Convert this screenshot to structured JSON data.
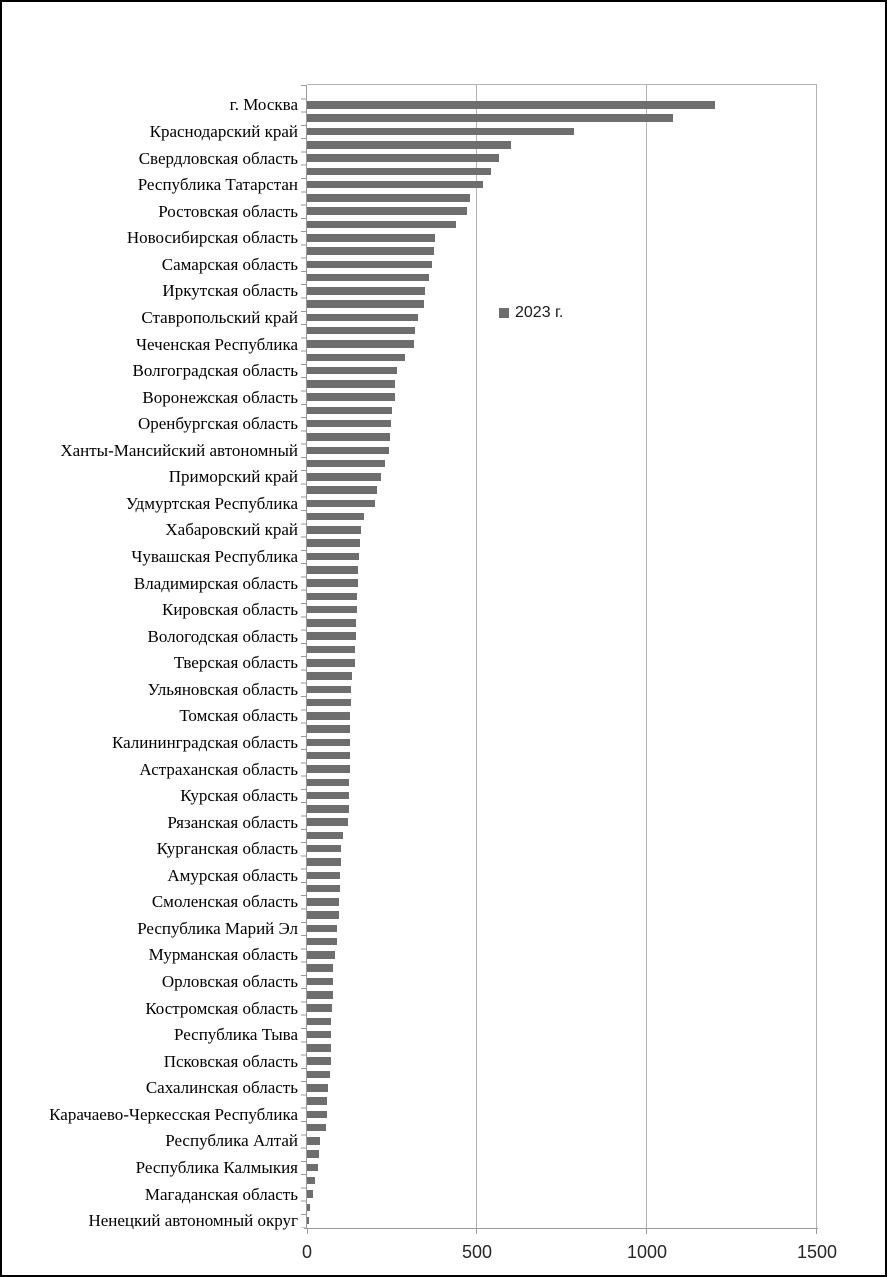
{
  "chart_data": {
    "type": "bar",
    "orientation": "horizontal",
    "legend": "2023 г.",
    "legend_position": "inside-plot",
    "grid": "vertical",
    "xlim": [
      0,
      1500
    ],
    "xticks": [
      0,
      500,
      1000,
      1500
    ],
    "xtick_labels": [
      "0",
      "500",
      "1000",
      "1500"
    ],
    "bar_color": "#6e6e6e",
    "note_unlabeled_rows": "",
    "rows": [
      {
        "label": "г. Москва",
        "value": 1200
      },
      {
        "label": "",
        "value": 1075
      },
      {
        "label": "Краснодарский край",
        "value": 785
      },
      {
        "label": "",
        "value": 600
      },
      {
        "label": "Свердловская область",
        "value": 565
      },
      {
        "label": "",
        "value": 540
      },
      {
        "label": "Республика Татарстан",
        "value": 517
      },
      {
        "label": "",
        "value": 480
      },
      {
        "label": "Ростовская область",
        "value": 470
      },
      {
        "label": "",
        "value": 438
      },
      {
        "label": "Новосибирская область",
        "value": 377
      },
      {
        "label": "",
        "value": 374
      },
      {
        "label": "Самарская область",
        "value": 367
      },
      {
        "label": "",
        "value": 360
      },
      {
        "label": "Иркутская область",
        "value": 346
      },
      {
        "label": "",
        "value": 343
      },
      {
        "label": "Ставропольский край",
        "value": 327
      },
      {
        "label": "",
        "value": 319
      },
      {
        "label": "Чеченская Республика",
        "value": 314
      },
      {
        "label": "",
        "value": 288
      },
      {
        "label": "Волгоградская область",
        "value": 265
      },
      {
        "label": "",
        "value": 259
      },
      {
        "label": "Воронежская область",
        "value": 258
      },
      {
        "label": "",
        "value": 251
      },
      {
        "label": "Оренбургская область",
        "value": 248
      },
      {
        "label": "",
        "value": 245
      },
      {
        "label": "Ханты-Мансийский автономный",
        "value": 242
      },
      {
        "label": "",
        "value": 230
      },
      {
        "label": "Приморский край",
        "value": 219
      },
      {
        "label": "",
        "value": 206
      },
      {
        "label": "Удмуртская Республика",
        "value": 201
      },
      {
        "label": "",
        "value": 167
      },
      {
        "label": "Хабаровский край",
        "value": 160
      },
      {
        "label": "",
        "value": 155
      },
      {
        "label": "Чувашская Республика",
        "value": 152
      },
      {
        "label": "",
        "value": 150
      },
      {
        "label": "Владимирская область",
        "value": 149
      },
      {
        "label": "",
        "value": 148
      },
      {
        "label": "Кировская область",
        "value": 146
      },
      {
        "label": "",
        "value": 144
      },
      {
        "label": "Вологодская область",
        "value": 143
      },
      {
        "label": "",
        "value": 141
      },
      {
        "label": "Тверская область",
        "value": 140
      },
      {
        "label": "",
        "value": 133
      },
      {
        "label": "Ульяновская область",
        "value": 130
      },
      {
        "label": "",
        "value": 128
      },
      {
        "label": "Томская область",
        "value": 127
      },
      {
        "label": "",
        "value": 127
      },
      {
        "label": "Калининградская область",
        "value": 126
      },
      {
        "label": "",
        "value": 126
      },
      {
        "label": "Астраханская область",
        "value": 125
      },
      {
        "label": "",
        "value": 124
      },
      {
        "label": "Курская область",
        "value": 124
      },
      {
        "label": "",
        "value": 123
      },
      {
        "label": "Рязанская область",
        "value": 121
      },
      {
        "label": "",
        "value": 106
      },
      {
        "label": "Курганская область",
        "value": 101
      },
      {
        "label": "",
        "value": 100
      },
      {
        "label": "Амурская область",
        "value": 98
      },
      {
        "label": "",
        "value": 97
      },
      {
        "label": "Смоленская область",
        "value": 94
      },
      {
        "label": "",
        "value": 93
      },
      {
        "label": "Республика Марий Эл",
        "value": 88
      },
      {
        "label": "",
        "value": 87
      },
      {
        "label": "Мурманская область",
        "value": 82
      },
      {
        "label": "",
        "value": 77
      },
      {
        "label": "Орловская область",
        "value": 76
      },
      {
        "label": "",
        "value": 75
      },
      {
        "label": "Костромская область",
        "value": 74
      },
      {
        "label": "",
        "value": 72
      },
      {
        "label": "Республика Тыва",
        "value": 71
      },
      {
        "label": "",
        "value": 70
      },
      {
        "label": "Псковская область",
        "value": 70
      },
      {
        "label": "",
        "value": 68
      },
      {
        "label": "Сахалинская область",
        "value": 62
      },
      {
        "label": "",
        "value": 60
      },
      {
        "label": "Карачаево-Черкесская Республика",
        "value": 58
      },
      {
        "label": "",
        "value": 55
      },
      {
        "label": "Республика Алтай",
        "value": 38
      },
      {
        "label": "",
        "value": 36
      },
      {
        "label": "Республика Калмыкия",
        "value": 32
      },
      {
        "label": "",
        "value": 23
      },
      {
        "label": "Магаданская область",
        "value": 18
      },
      {
        "label": "",
        "value": 8
      },
      {
        "label": "Ненецкий автономный округ",
        "value": 6
      }
    ]
  }
}
